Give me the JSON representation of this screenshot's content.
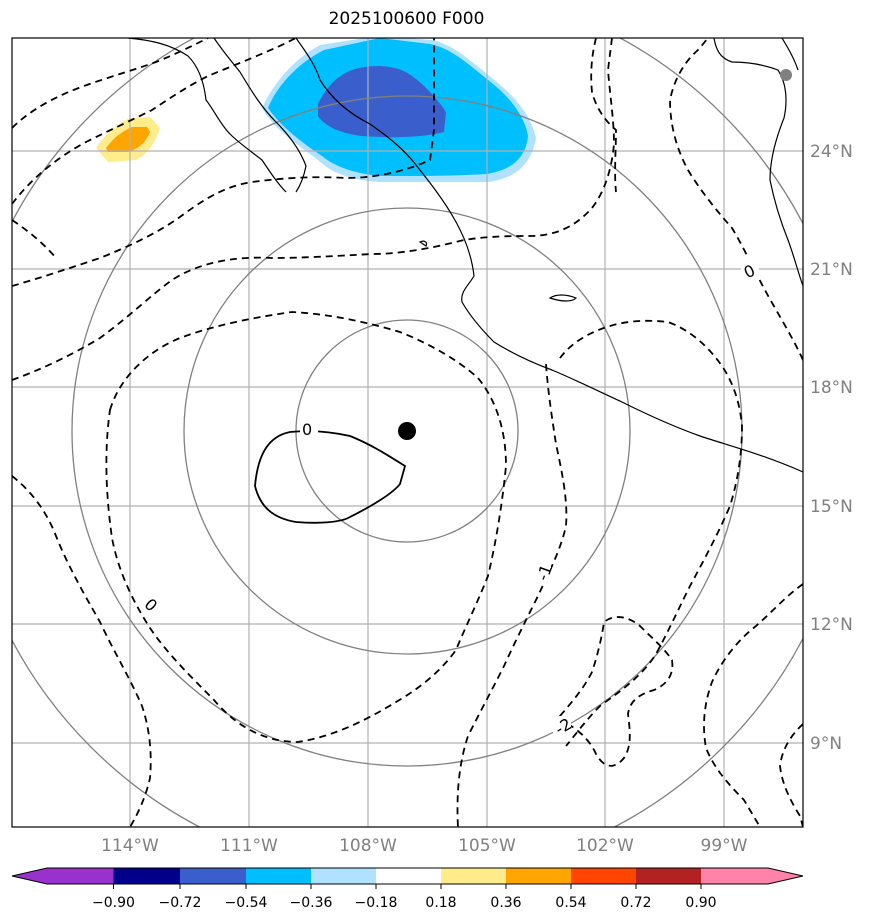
{
  "title": "2025100600 F000",
  "map": {
    "lat_labels": [
      "24°N",
      "21°N",
      "18°N",
      "15°N",
      "12°N",
      "9°N"
    ],
    "lon_labels": [
      "114°W",
      "111°W",
      "108°W",
      "105°W",
      "102°W",
      "99°W"
    ],
    "contour_labels": [
      "0",
      "0",
      "0",
      "-1",
      "-2"
    ],
    "colors": {
      "gridline": "#b0b0b0",
      "range_ring": "#808080",
      "coastline": "#000000",
      "storm_center": "#000000"
    }
  },
  "colorbar": {
    "tick_labels": [
      "−0.90",
      "−0.72",
      "−0.54",
      "−0.36",
      "−0.18",
      "0.18",
      "0.36",
      "0.54",
      "0.72",
      "0.90"
    ],
    "colors": [
      "#9932cc",
      "#00008b",
      "#3a5fcd",
      "#00bfff",
      "#b0e2ff",
      "#ffffff",
      "#ffec8b",
      "#ffa500",
      "#ff4500",
      "#b22222",
      "#ff82ab"
    ]
  }
}
